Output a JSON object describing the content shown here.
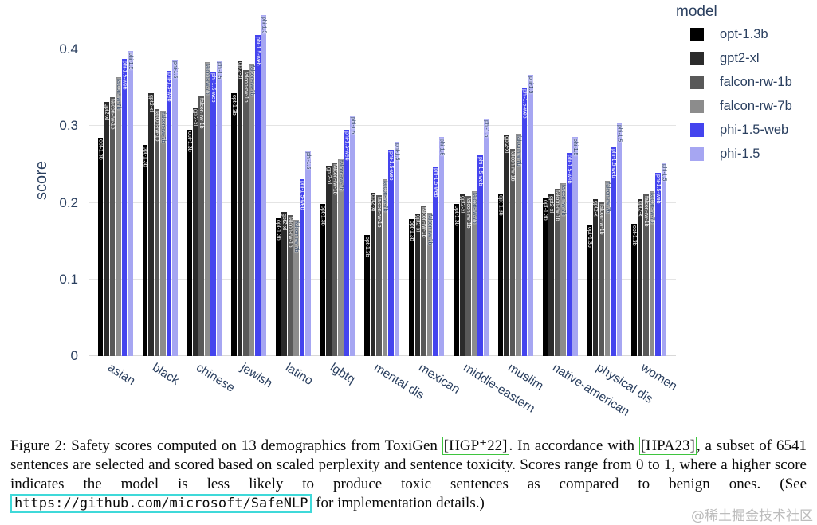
{
  "legend": {
    "title": "model"
  },
  "chart_data": {
    "type": "bar",
    "title": "",
    "xlabel": "",
    "ylabel": "score",
    "ylim": [
      0,
      0.45
    ],
    "grid": true,
    "legend_position": "top-right",
    "yticks": [
      "0",
      "0.1",
      "0.2",
      "0.3",
      "0.4"
    ],
    "categories": [
      "asian",
      "black",
      "chinese",
      "jewish",
      "latino",
      "lgbtq",
      "mental dis",
      "mexican",
      "middle-eastern",
      "muslim",
      "native-american",
      "physical dis",
      "women"
    ],
    "series": [
      {
        "name": "opt-1.3b",
        "color": "#000000",
        "label_color": "#ffffff",
        "values": [
          0.285,
          0.275,
          0.295,
          0.343,
          0.18,
          0.198,
          0.158,
          0.179,
          0.198,
          0.212,
          0.206,
          0.17,
          0.173
        ]
      },
      {
        "name": "gpt2-xl",
        "color": "#2b2b2b",
        "label_color": "#ffffff",
        "values": [
          0.331,
          0.343,
          0.324,
          0.385,
          0.188,
          0.248,
          0.213,
          0.186,
          0.211,
          0.289,
          0.211,
          0.205,
          0.205
        ]
      },
      {
        "name": "falcon-rw-1b",
        "color": "#595959",
        "label_color": "#ffffff",
        "values": [
          0.338,
          0.322,
          0.339,
          0.373,
          0.184,
          0.253,
          0.21,
          0.196,
          0.209,
          0.27,
          0.218,
          0.201,
          0.211
        ]
      },
      {
        "name": "falcon-rw-7b",
        "color": "#8c8c8c",
        "label_color": "#2a3f5f",
        "values": [
          0.364,
          0.32,
          0.383,
          0.381,
          0.178,
          0.258,
          0.231,
          0.187,
          0.215,
          0.29,
          0.225,
          0.229,
          0.215
        ]
      },
      {
        "name": "phi-1.5-web",
        "color": "#4444ee",
        "label_color": "#ffffff",
        "values": [
          0.388,
          0.372,
          0.371,
          0.419,
          0.231,
          0.295,
          0.269,
          0.247,
          0.262,
          0.35,
          0.265,
          0.272,
          0.239
        ]
      },
      {
        "name": "phi-1.5",
        "color": "#a6a6f2",
        "label_color": "#2a3f5f",
        "values": [
          0.398,
          0.386,
          0.385,
          0.445,
          0.268,
          0.314,
          0.279,
          0.286,
          0.31,
          0.367,
          0.286,
          0.303,
          0.253
        ]
      }
    ]
  },
  "caption": {
    "seg1": "Figure 2: Safety scores computed on 13 demographics from ToxiGen ",
    "cite1": "[HGP⁺22]",
    "seg2": ". In accordance with ",
    "cite2": "[HPA23]",
    "seg3": ", a subset of 6541 sentences are selected and scored based on scaled perplexity and sentence toxicity. Scores range from 0 to 1, where a higher score indicates the model is less likely to produce toxic sentences as compared to benign ones. (See ",
    "url": "https://github.com/microsoft/SafeNLP",
    "seg4": " for implementation details.)"
  },
  "watermark": "@稀土掘金技术社区",
  "colors": {
    "axis_text": "#2a3f5f",
    "gridline": "#e4e4e4",
    "citation_box_border": "#3fc43f",
    "url_box_border": "#3fd9d9",
    "watermark_text": "#bcbcbc"
  }
}
